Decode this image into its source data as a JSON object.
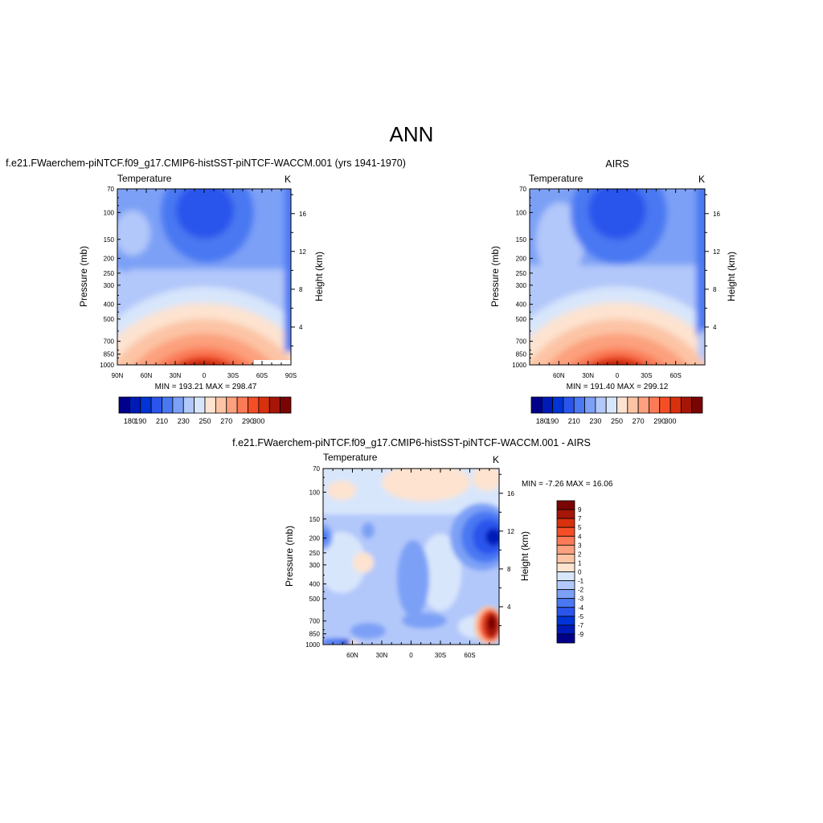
{
  "figure": {
    "title": "ANN"
  },
  "colormaps": {
    "abs": [
      "#00008a",
      "#001ab8",
      "#0034d6",
      "#2a55ec",
      "#4a78f2",
      "#7ba0f6",
      "#b2c8fa",
      "#d8e6fb",
      "#fde3d0",
      "#fcc4a5",
      "#fca07d",
      "#fa7b56",
      "#f54e26",
      "#d9300e",
      "#a51607",
      "#7a0404"
    ],
    "diff": [
      "#00008a",
      "#001ab8",
      "#0034d6",
      "#2a55ec",
      "#4a78f2",
      "#7ba0f6",
      "#b2c8fa",
      "#d8e6fb",
      "#fde3d0",
      "#fcc4a5",
      "#fca07d",
      "#fa7b56",
      "#f54e26",
      "#d9300e",
      "#a51607",
      "#7a0404"
    ]
  },
  "panels": [
    {
      "id": "model",
      "title": "f.e21.FWaerchem-piNTCF.f09_g17.CMIP6-histSST-piNTCF-WACCM.001 (yrs 1941-1970)",
      "left_label": "Temperature",
      "right_label": "K",
      "ylabel": "Pressure (mb)",
      "ylabel_right": "Height (km)",
      "xticks": [
        "90N",
        "60N",
        "30N",
        "0",
        "30S",
        "60S",
        "90S"
      ],
      "yticks": [
        "70",
        "100",
        "150",
        "200",
        "250",
        "300",
        "400",
        "500",
        "700",
        "850",
        "1000"
      ],
      "height_ticks": [
        "16",
        "12",
        "8",
        "4"
      ],
      "stats": "MIN = 193.21  MAX = 298.47",
      "colorbar": {
        "labels": [
          "180",
          "190",
          "210",
          "230",
          "250",
          "270",
          "290",
          "300"
        ]
      }
    },
    {
      "id": "obs",
      "title": "AIRS",
      "left_label": "Temperature",
      "right_label": "K",
      "ylabel": "Pressure (mb)",
      "ylabel_right": "Height (km)",
      "xticks": [
        "60N",
        "30N",
        "0",
        "30S",
        "60S"
      ],
      "yticks": [
        "70",
        "100",
        "150",
        "200",
        "250",
        "300",
        "400",
        "500",
        "700",
        "850",
        "1000"
      ],
      "height_ticks": [
        "16",
        "12",
        "8",
        "4"
      ],
      "stats": "MIN = 191.40  MAX = 299.12",
      "colorbar": {
        "labels": [
          "180",
          "190",
          "210",
          "230",
          "250",
          "270",
          "290",
          "300"
        ]
      }
    },
    {
      "id": "diff",
      "title": "f.e21.FWaerchem-piNTCF.f09_g17.CMIP6-histSST-piNTCF-WACCM.001 - AIRS",
      "left_label": "Temperature",
      "right_label": "K",
      "ylabel": "Pressure (mb)",
      "ylabel_right": "Height (km)",
      "xticks": [
        "60N",
        "30N",
        "0",
        "30S",
        "60S"
      ],
      "yticks": [
        "70",
        "100",
        "150",
        "200",
        "250",
        "300",
        "400",
        "500",
        "700",
        "850",
        "1000"
      ],
      "height_ticks": [
        "16",
        "12",
        "8",
        "4"
      ],
      "stats": "MIN =  -7.26  MAX =  16.06",
      "colorbar": {
        "labels": [
          "9",
          "7",
          "5",
          "4",
          "3",
          "2",
          "1",
          "0",
          "-1",
          "-2",
          "-3",
          "-4",
          "-5",
          "-7",
          "-9"
        ]
      }
    }
  ],
  "chart_data": [
    {
      "type": "heatmap",
      "title": "f.e21.FWaerchem-piNTCF.f09_g17.CMIP6-histSST-piNTCF-WACCM.001 (yrs 1941-1970)",
      "xlabel": "",
      "ylabel": "Pressure (mb)",
      "xlim": [
        "90N",
        "90S"
      ],
      "ylim_mb": [
        1000,
        70
      ],
      "y_scale": "log",
      "units": "K",
      "min": 193.21,
      "max": 298.47,
      "levels": [
        180,
        185,
        190,
        200,
        210,
        220,
        230,
        240,
        250,
        260,
        270,
        280,
        290,
        295,
        300
      ]
    },
    {
      "type": "heatmap",
      "title": "AIRS",
      "xlabel": "",
      "ylabel": "Pressure (mb)",
      "xlim": [
        "90N",
        "90S"
      ],
      "ylim_mb": [
        1000,
        70
      ],
      "y_scale": "log",
      "units": "K",
      "min": 191.4,
      "max": 299.12,
      "levels": [
        180,
        185,
        190,
        200,
        210,
        220,
        230,
        240,
        250,
        260,
        270,
        280,
        290,
        295,
        300
      ]
    },
    {
      "type": "heatmap",
      "title": "f.e21.FWaerchem-piNTCF.f09_g17.CMIP6-histSST-piNTCF-WACCM.001 - AIRS",
      "xlabel": "",
      "ylabel": "Pressure (mb)",
      "xlim": [
        "90N",
        "90S"
      ],
      "ylim_mb": [
        1000,
        70
      ],
      "y_scale": "log",
      "units": "K",
      "min": -7.26,
      "max": 16.06,
      "levels": [
        -9,
        -7,
        -5,
        -4,
        -3,
        -2,
        -1,
        0,
        1,
        2,
        3,
        4,
        5,
        7,
        9
      ]
    }
  ]
}
